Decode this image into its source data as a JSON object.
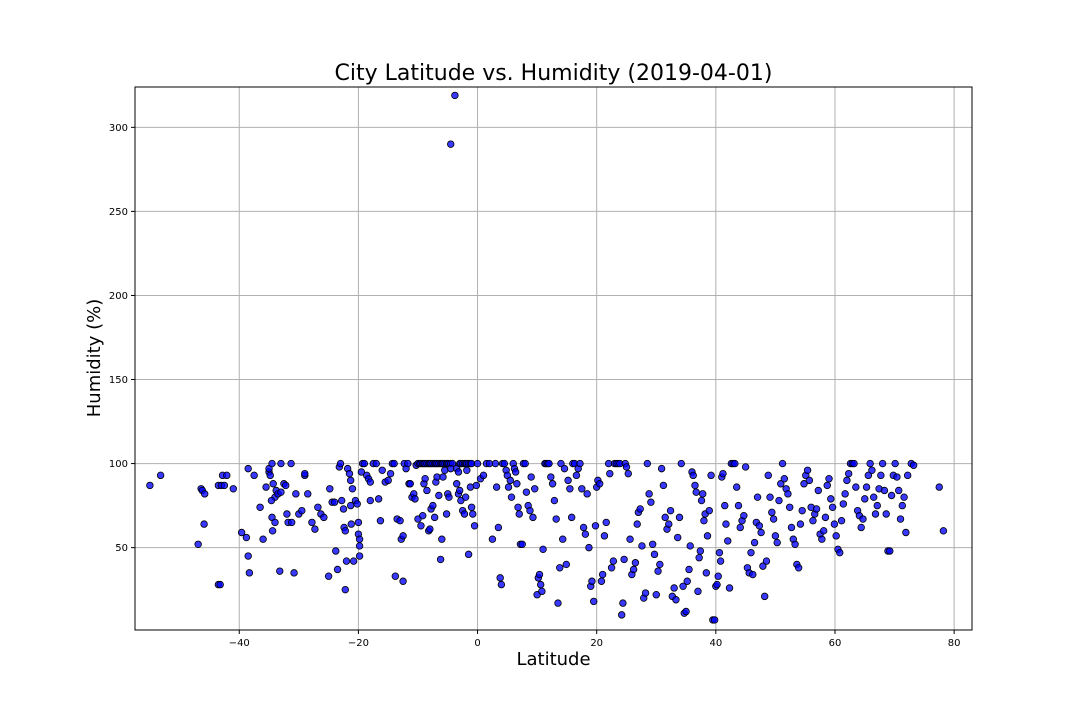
{
  "chart_data": {
    "type": "scatter",
    "title": "City Latitude vs. Humidity (2019-04-01)",
    "xlabel": "Latitude",
    "ylabel": "Humidity (%)",
    "xlim": [
      -57.5,
      83
    ],
    "ylim": [
      1,
      324
    ],
    "xticks": [
      -40,
      -20,
      0,
      20,
      40,
      60,
      80
    ],
    "yticks": [
      50,
      100,
      150,
      200,
      250,
      300
    ],
    "grid": true,
    "marker_color": "#0000ff",
    "marker_edge": "#000000",
    "points": [
      [
        -53.2,
        93
      ],
      [
        -55,
        87
      ],
      [
        -46.4,
        85
      ],
      [
        -46.2,
        84
      ],
      [
        -45.8,
        82
      ],
      [
        -46.9,
        52
      ],
      [
        -45.9,
        64
      ],
      [
        -43.5,
        87
      ],
      [
        -43,
        87
      ],
      [
        -42.5,
        87
      ],
      [
        -42.8,
        93
      ],
      [
        -42.1,
        93
      ],
      [
        -41,
        85
      ],
      [
        -43.5,
        28
      ],
      [
        -43.2,
        28
      ],
      [
        -39.6,
        59
      ],
      [
        -38.8,
        56
      ],
      [
        -38.5,
        45
      ],
      [
        -38.3,
        35
      ],
      [
        -38.5,
        97
      ],
      [
        -37.5,
        93
      ],
      [
        -36.5,
        74
      ],
      [
        -36,
        55
      ],
      [
        -35.5,
        86
      ],
      [
        -35,
        95
      ],
      [
        -34.8,
        93
      ],
      [
        -35,
        97
      ],
      [
        -34.5,
        100
      ],
      [
        -34.3,
        88
      ],
      [
        -34,
        80
      ],
      [
        -33.8,
        84
      ],
      [
        -34.6,
        78
      ],
      [
        -34.5,
        68
      ],
      [
        -34.4,
        60
      ],
      [
        -34,
        65
      ],
      [
        -33.5,
        82
      ],
      [
        -33,
        83
      ],
      [
        -33.2,
        36
      ],
      [
        -33,
        100
      ],
      [
        -32.5,
        88
      ],
      [
        -32.2,
        87
      ],
      [
        -32,
        70
      ],
      [
        -31.8,
        65
      ],
      [
        -31.2,
        65
      ],
      [
        -31.3,
        100
      ],
      [
        -30.8,
        35
      ],
      [
        -30.5,
        82
      ],
      [
        -30,
        70
      ],
      [
        -29.5,
        72
      ],
      [
        -29,
        93
      ],
      [
        -29,
        94
      ],
      [
        -28.5,
        82
      ],
      [
        -27.8,
        65
      ],
      [
        -27.3,
        61
      ],
      [
        -26.8,
        74
      ],
      [
        -26.3,
        70
      ],
      [
        -25.8,
        68
      ],
      [
        -25,
        33
      ],
      [
        -24.8,
        85
      ],
      [
        -24.4,
        77
      ],
      [
        -24,
        77
      ],
      [
        -23.8,
        48
      ],
      [
        -23.5,
        37
      ],
      [
        -23.2,
        98
      ],
      [
        -23,
        100
      ],
      [
        -22.8,
        78
      ],
      [
        -22.5,
        73
      ],
      [
        -22.4,
        62
      ],
      [
        -22.2,
        60
      ],
      [
        -22,
        42
      ],
      [
        -22.2,
        25
      ],
      [
        -21.8,
        97
      ],
      [
        -21.5,
        94
      ],
      [
        -21.3,
        90
      ],
      [
        -21,
        85
      ],
      [
        -21.3,
        75
      ],
      [
        -21.2,
        64
      ],
      [
        -20.8,
        42
      ],
      [
        -20.5,
        78
      ],
      [
        -20.2,
        76
      ],
      [
        -20,
        65
      ],
      [
        -20,
        58
      ],
      [
        -19.8,
        55
      ],
      [
        -19.8,
        51
      ],
      [
        -19.8,
        45
      ],
      [
        -19.5,
        95
      ],
      [
        -19.3,
        100
      ],
      [
        -19,
        100
      ],
      [
        -18.6,
        93
      ],
      [
        -18.3,
        91
      ],
      [
        -18,
        89
      ],
      [
        -18,
        78
      ],
      [
        -17.5,
        100
      ],
      [
        -17,
        100
      ],
      [
        -16.6,
        79
      ],
      [
        -16.3,
        66
      ],
      [
        -16,
        96
      ],
      [
        -15.5,
        89
      ],
      [
        -15,
        90
      ],
      [
        -14.6,
        94
      ],
      [
        -14.3,
        100
      ],
      [
        -14,
        100
      ],
      [
        -13.8,
        33
      ],
      [
        -13.5,
        67
      ],
      [
        -13,
        66
      ],
      [
        -12.8,
        55
      ],
      [
        -12.5,
        57
      ],
      [
        -12.5,
        30
      ],
      [
        -12.3,
        100
      ],
      [
        -12,
        97
      ],
      [
        -11.7,
        100
      ],
      [
        -11.5,
        88
      ],
      [
        -11.3,
        88
      ],
      [
        -11,
        80
      ],
      [
        -10.7,
        82
      ],
      [
        -10.5,
        79
      ],
      [
        -10.3,
        99
      ],
      [
        -10,
        100
      ],
      [
        -9.7,
        100
      ],
      [
        -9.5,
        100
      ],
      [
        -9.2,
        100
      ],
      [
        -9,
        100
      ],
      [
        -8.8,
        100
      ],
      [
        -8.5,
        100
      ],
      [
        -8.2,
        100
      ],
      [
        -8,
        100
      ],
      [
        -7.8,
        100
      ],
      [
        -7.5,
        100
      ],
      [
        -7.2,
        100
      ],
      [
        -7,
        100
      ],
      [
        -6.8,
        100
      ],
      [
        -6.5,
        100
      ],
      [
        -6.2,
        100
      ],
      [
        -6,
        100
      ],
      [
        -5.8,
        100
      ],
      [
        -5.5,
        100
      ],
      [
        -5.2,
        100
      ],
      [
        -5,
        100
      ],
      [
        -4.8,
        100
      ],
      [
        -4.5,
        100
      ],
      [
        -4.2,
        100
      ],
      [
        -10,
        67
      ],
      [
        -9.5,
        63
      ],
      [
        -9.2,
        69
      ],
      [
        -9,
        88
      ],
      [
        -8.8,
        91
      ],
      [
        -8.5,
        84
      ],
      [
        -8.2,
        60
      ],
      [
        -8,
        61
      ],
      [
        -7.8,
        73
      ],
      [
        -7.5,
        75
      ],
      [
        -7.2,
        68
      ],
      [
        -7,
        89
      ],
      [
        -6.8,
        92
      ],
      [
        -6.5,
        81
      ],
      [
        -6.2,
        43
      ],
      [
        -6,
        55
      ],
      [
        -5.8,
        92
      ],
      [
        -5.5,
        96
      ],
      [
        -5.2,
        70
      ],
      [
        -5,
        82
      ],
      [
        -4.8,
        80
      ],
      [
        -4.5,
        97
      ],
      [
        -4.5,
        290
      ],
      [
        -3.8,
        319
      ],
      [
        -3.5,
        97
      ],
      [
        -3.2,
        95
      ],
      [
        -3,
        100
      ],
      [
        -2.8,
        100
      ],
      [
        -2.5,
        100
      ],
      [
        -2.2,
        100
      ],
      [
        -2,
        100
      ],
      [
        -1.8,
        100
      ],
      [
        -1.5,
        100
      ],
      [
        -1.2,
        100
      ],
      [
        -1,
        100
      ],
      [
        -3.5,
        88
      ],
      [
        -3.2,
        82
      ],
      [
        -3,
        84
      ],
      [
        -2.8,
        78
      ],
      [
        -2.5,
        72
      ],
      [
        -2.2,
        70
      ],
      [
        -2,
        80
      ],
      [
        -1.8,
        96
      ],
      [
        -1.5,
        46
      ],
      [
        -1.2,
        86
      ],
      [
        -1,
        74
      ],
      [
        -0.8,
        70
      ],
      [
        -0.5,
        63
      ],
      [
        -0.2,
        87
      ],
      [
        0,
        100
      ],
      [
        0.5,
        91
      ],
      [
        1,
        93
      ],
      [
        1.5,
        100
      ],
      [
        2,
        100
      ],
      [
        2.5,
        55
      ],
      [
        3,
        100
      ],
      [
        3.2,
        86
      ],
      [
        3.5,
        62
      ],
      [
        3.8,
        32
      ],
      [
        4,
        28
      ],
      [
        4.2,
        100
      ],
      [
        4.5,
        100
      ],
      [
        4.8,
        96
      ],
      [
        5,
        93
      ],
      [
        5.2,
        86
      ],
      [
        5.5,
        90
      ],
      [
        5.7,
        80
      ],
      [
        6,
        100
      ],
      [
        6.2,
        97
      ],
      [
        6.4,
        95
      ],
      [
        6.6,
        88
      ],
      [
        6.8,
        74
      ],
      [
        7,
        70
      ],
      [
        7.2,
        52
      ],
      [
        7.5,
        52
      ],
      [
        7.7,
        100
      ],
      [
        8,
        100
      ],
      [
        8.2,
        83
      ],
      [
        8.5,
        75
      ],
      [
        8.8,
        72
      ],
      [
        9,
        92
      ],
      [
        9.3,
        68
      ],
      [
        9.6,
        85
      ],
      [
        10,
        22
      ],
      [
        10.2,
        32
      ],
      [
        10.4,
        34
      ],
      [
        10.6,
        28
      ],
      [
        10.8,
        24
      ],
      [
        11,
        49
      ],
      [
        11.3,
        100
      ],
      [
        11.5,
        100
      ],
      [
        11.8,
        100
      ],
      [
        12,
        100
      ],
      [
        12.3,
        92
      ],
      [
        12.6,
        88
      ],
      [
        12.9,
        78
      ],
      [
        13.2,
        67
      ],
      [
        13.5,
        17
      ],
      [
        13.8,
        38
      ],
      [
        14,
        100
      ],
      [
        14.3,
        55
      ],
      [
        14.6,
        97
      ],
      [
        14.9,
        40
      ],
      [
        15.2,
        90
      ],
      [
        15.5,
        85
      ],
      [
        15.8,
        68
      ],
      [
        16,
        100
      ],
      [
        16.3,
        100
      ],
      [
        16.6,
        93
      ],
      [
        16.9,
        97
      ],
      [
        17.2,
        100
      ],
      [
        17.5,
        85
      ],
      [
        17.8,
        62
      ],
      [
        18.1,
        58
      ],
      [
        18.4,
        82
      ],
      [
        18.7,
        50
      ],
      [
        19,
        27
      ],
      [
        19.2,
        30
      ],
      [
        19.5,
        18
      ],
      [
        19.8,
        63
      ],
      [
        20,
        86
      ],
      [
        20.2,
        90
      ],
      [
        20.5,
        88
      ],
      [
        20.8,
        30
      ],
      [
        21,
        34
      ],
      [
        21.3,
        57
      ],
      [
        21.6,
        65
      ],
      [
        22,
        100
      ],
      [
        22.2,
        94
      ],
      [
        22.5,
        38
      ],
      [
        22.8,
        42
      ],
      [
        23,
        100
      ],
      [
        23.3,
        100
      ],
      [
        23.6,
        100
      ],
      [
        23.9,
        100
      ],
      [
        24.2,
        10
      ],
      [
        24.4,
        17
      ],
      [
        24.6,
        43
      ],
      [
        24.8,
        100
      ],
      [
        25,
        98
      ],
      [
        25.3,
        94
      ],
      [
        25.6,
        55
      ],
      [
        25.9,
        34
      ],
      [
        26.2,
        37
      ],
      [
        26.5,
        41
      ],
      [
        26.8,
        64
      ],
      [
        27,
        71
      ],
      [
        27.3,
        73
      ],
      [
        27.6,
        51
      ],
      [
        27.9,
        20
      ],
      [
        28.2,
        23
      ],
      [
        28.5,
        100
      ],
      [
        28.8,
        82
      ],
      [
        29.1,
        77
      ],
      [
        29.4,
        52
      ],
      [
        29.7,
        46
      ],
      [
        30,
        22
      ],
      [
        30.3,
        36
      ],
      [
        30.6,
        40
      ],
      [
        30.9,
        97
      ],
      [
        31.2,
        87
      ],
      [
        31.5,
        68
      ],
      [
        31.8,
        61
      ],
      [
        32.1,
        64
      ],
      [
        32.4,
        72
      ],
      [
        32.7,
        21
      ],
      [
        33,
        26
      ],
      [
        33.3,
        19
      ],
      [
        33.6,
        56
      ],
      [
        33.9,
        68
      ],
      [
        34.2,
        100
      ],
      [
        34.5,
        27
      ],
      [
        34.7,
        11
      ],
      [
        35,
        12
      ],
      [
        35.2,
        30
      ],
      [
        35.5,
        37
      ],
      [
        35.7,
        51
      ],
      [
        36,
        95
      ],
      [
        36.2,
        93
      ],
      [
        36.5,
        87
      ],
      [
        36.7,
        83
      ],
      [
        37,
        24
      ],
      [
        37.2,
        44
      ],
      [
        37.4,
        48
      ],
      [
        37.6,
        78
      ],
      [
        37.8,
        82
      ],
      [
        38,
        66
      ],
      [
        38.2,
        70
      ],
      [
        38.4,
        35
      ],
      [
        38.6,
        57
      ],
      [
        38.9,
        72
      ],
      [
        39.2,
        93
      ],
      [
        39.5,
        7
      ],
      [
        39.8,
        7
      ],
      [
        40,
        27
      ],
      [
        40.2,
        28
      ],
      [
        40.4,
        33
      ],
      [
        40.6,
        47
      ],
      [
        40.8,
        42
      ],
      [
        41,
        92
      ],
      [
        41.2,
        94
      ],
      [
        41.5,
        75
      ],
      [
        41.7,
        64
      ],
      [
        42,
        54
      ],
      [
        42.3,
        26
      ],
      [
        42.6,
        100
      ],
      [
        42.9,
        100
      ],
      [
        43.2,
        100
      ],
      [
        43.5,
        86
      ],
      [
        43.8,
        75
      ],
      [
        44.1,
        62
      ],
      [
        44.4,
        66
      ],
      [
        44.7,
        69
      ],
      [
        45,
        98
      ],
      [
        45.3,
        38
      ],
      [
        45.6,
        35
      ],
      [
        45.9,
        47
      ],
      [
        46.2,
        34
      ],
      [
        46.5,
        53
      ],
      [
        46.8,
        65
      ],
      [
        47,
        80
      ],
      [
        47.3,
        63
      ],
      [
        47.6,
        59
      ],
      [
        47.9,
        39
      ],
      [
        48.2,
        21
      ],
      [
        48.5,
        42
      ],
      [
        48.8,
        93
      ],
      [
        49.1,
        80
      ],
      [
        49.4,
        71
      ],
      [
        49.7,
        67
      ],
      [
        50,
        57
      ],
      [
        50.3,
        53
      ],
      [
        50.6,
        78
      ],
      [
        50.9,
        88
      ],
      [
        51.2,
        100
      ],
      [
        51.5,
        91
      ],
      [
        51.8,
        85
      ],
      [
        52.1,
        82
      ],
      [
        52.4,
        74
      ],
      [
        52.7,
        62
      ],
      [
        53,
        55
      ],
      [
        53.3,
        52
      ],
      [
        53.6,
        40
      ],
      [
        53.9,
        38
      ],
      [
        54.2,
        64
      ],
      [
        54.5,
        72
      ],
      [
        54.8,
        88
      ],
      [
        55.1,
        93
      ],
      [
        55.4,
        96
      ],
      [
        55.7,
        90
      ],
      [
        56,
        74
      ],
      [
        56.3,
        66
      ],
      [
        56.6,
        70
      ],
      [
        56.9,
        73
      ],
      [
        57.2,
        84
      ],
      [
        57.5,
        58
      ],
      [
        57.8,
        55
      ],
      [
        58.1,
        60
      ],
      [
        58.4,
        68
      ],
      [
        58.7,
        87
      ],
      [
        59,
        91
      ],
      [
        59.3,
        79
      ],
      [
        59.6,
        74
      ],
      [
        59.9,
        64
      ],
      [
        60.2,
        57
      ],
      [
        60.5,
        49
      ],
      [
        60.8,
        47
      ],
      [
        61.1,
        66
      ],
      [
        61.4,
        76
      ],
      [
        61.7,
        82
      ],
      [
        62,
        90
      ],
      [
        62.3,
        94
      ],
      [
        62.6,
        100
      ],
      [
        62.9,
        100
      ],
      [
        63.2,
        100
      ],
      [
        63.5,
        86
      ],
      [
        63.8,
        72
      ],
      [
        64.1,
        69
      ],
      [
        64.4,
        62
      ],
      [
        64.7,
        67
      ],
      [
        65,
        79
      ],
      [
        65.3,
        86
      ],
      [
        65.6,
        93
      ],
      [
        65.9,
        100
      ],
      [
        66.2,
        96
      ],
      [
        66.5,
        80
      ],
      [
        66.8,
        70
      ],
      [
        67.1,
        75
      ],
      [
        67.4,
        85
      ],
      [
        67.7,
        93
      ],
      [
        68,
        100
      ],
      [
        68.3,
        84
      ],
      [
        68.6,
        70
      ],
      [
        68.9,
        48
      ],
      [
        69.2,
        48
      ],
      [
        69.5,
        81
      ],
      [
        69.8,
        93
      ],
      [
        70.1,
        100
      ],
      [
        70.4,
        92
      ],
      [
        70.7,
        84
      ],
      [
        71,
        67
      ],
      [
        71.3,
        75
      ],
      [
        71.6,
        80
      ],
      [
        71.9,
        59
      ],
      [
        72.2,
        93
      ],
      [
        72.8,
        100
      ],
      [
        73.2,
        99
      ],
      [
        77.5,
        86
      ],
      [
        78.2,
        60
      ]
    ]
  }
}
